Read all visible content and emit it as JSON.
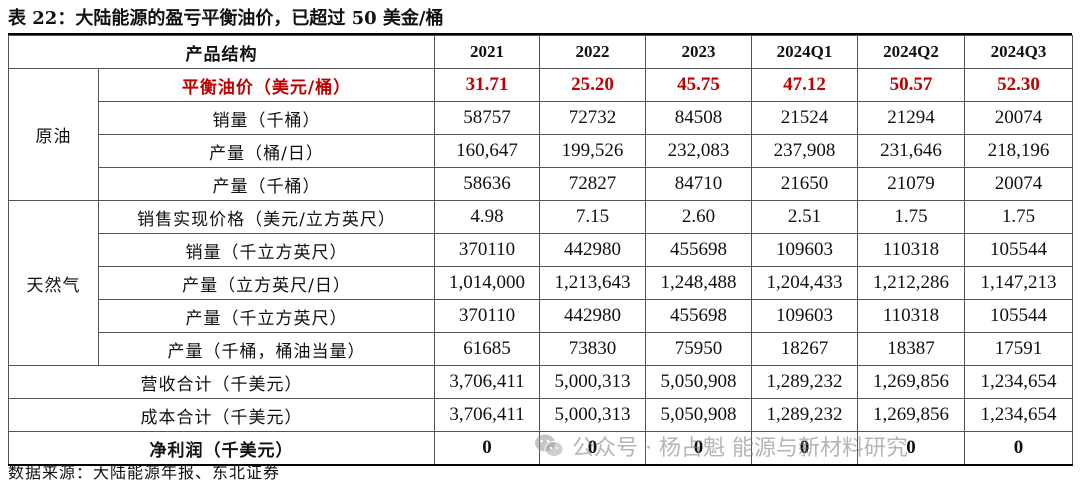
{
  "title": "表 22：大陆能源的盈亏平衡油价，已超过 50 美金/桶",
  "table": {
    "header": {
      "label": "产品结构",
      "columns": [
        "2021",
        "2022",
        "2023",
        "2024Q1",
        "2024Q2",
        "2024Q3"
      ]
    },
    "groups": {
      "crude": "原油",
      "gas": "天然气"
    },
    "rows": [
      {
        "label": "平衡油价（美元/桶）",
        "values": [
          "31.71",
          "25.20",
          "45.75",
          "47.12",
          "50.57",
          "52.30"
        ]
      },
      {
        "label": "销量（千桶）",
        "values": [
          "58757",
          "72732",
          "84508",
          "21524",
          "21294",
          "20074"
        ]
      },
      {
        "label": "产量（桶/日）",
        "values": [
          "160,647",
          "199,526",
          "232,083",
          "237,908",
          "231,646",
          "218,196"
        ]
      },
      {
        "label": "产量（千桶）",
        "values": [
          "58636",
          "72827",
          "84710",
          "21650",
          "21079",
          "20074"
        ]
      },
      {
        "label": "销售实现价格（美元/立方英尺）",
        "values": [
          "4.98",
          "7.15",
          "2.60",
          "2.51",
          "1.75",
          "1.75"
        ]
      },
      {
        "label": "销量（千立方英尺）",
        "values": [
          "370110",
          "442980",
          "455698",
          "109603",
          "110318",
          "105544"
        ]
      },
      {
        "label": "产量（立方英尺/日）",
        "values": [
          "1,014,000",
          "1,213,643",
          "1,248,488",
          "1,204,433",
          "1,212,286",
          "1,147,213"
        ]
      },
      {
        "label": "产量（千立方英尺）",
        "values": [
          "370110",
          "442980",
          "455698",
          "109603",
          "110318",
          "105544"
        ]
      },
      {
        "label": "产量（千桶，桶油当量）",
        "values": [
          "61685",
          "73830",
          "75950",
          "18267",
          "18387",
          "17591"
        ]
      },
      {
        "label": "营收合计（千美元）",
        "values": [
          "3,706,411",
          "5,000,313",
          "5,050,908",
          "1,289,232",
          "1,269,856",
          "1,234,654"
        ]
      },
      {
        "label": "成本合计（千美元）",
        "values": [
          "3,706,411",
          "5,000,313",
          "5,050,908",
          "1,289,232",
          "1,269,856",
          "1,234,654"
        ]
      },
      {
        "label": "净利润（千美元）",
        "values": [
          "0",
          "0",
          "0",
          "0",
          "0",
          "0"
        ]
      }
    ]
  },
  "source": "数据来源：大陆能源年报、东北证券",
  "watermark": "公众号 · 杨占魁 能源与新材料研究",
  "icons": {
    "watermark": "wechat-icon"
  },
  "colors": {
    "highlight": "#c00000"
  }
}
